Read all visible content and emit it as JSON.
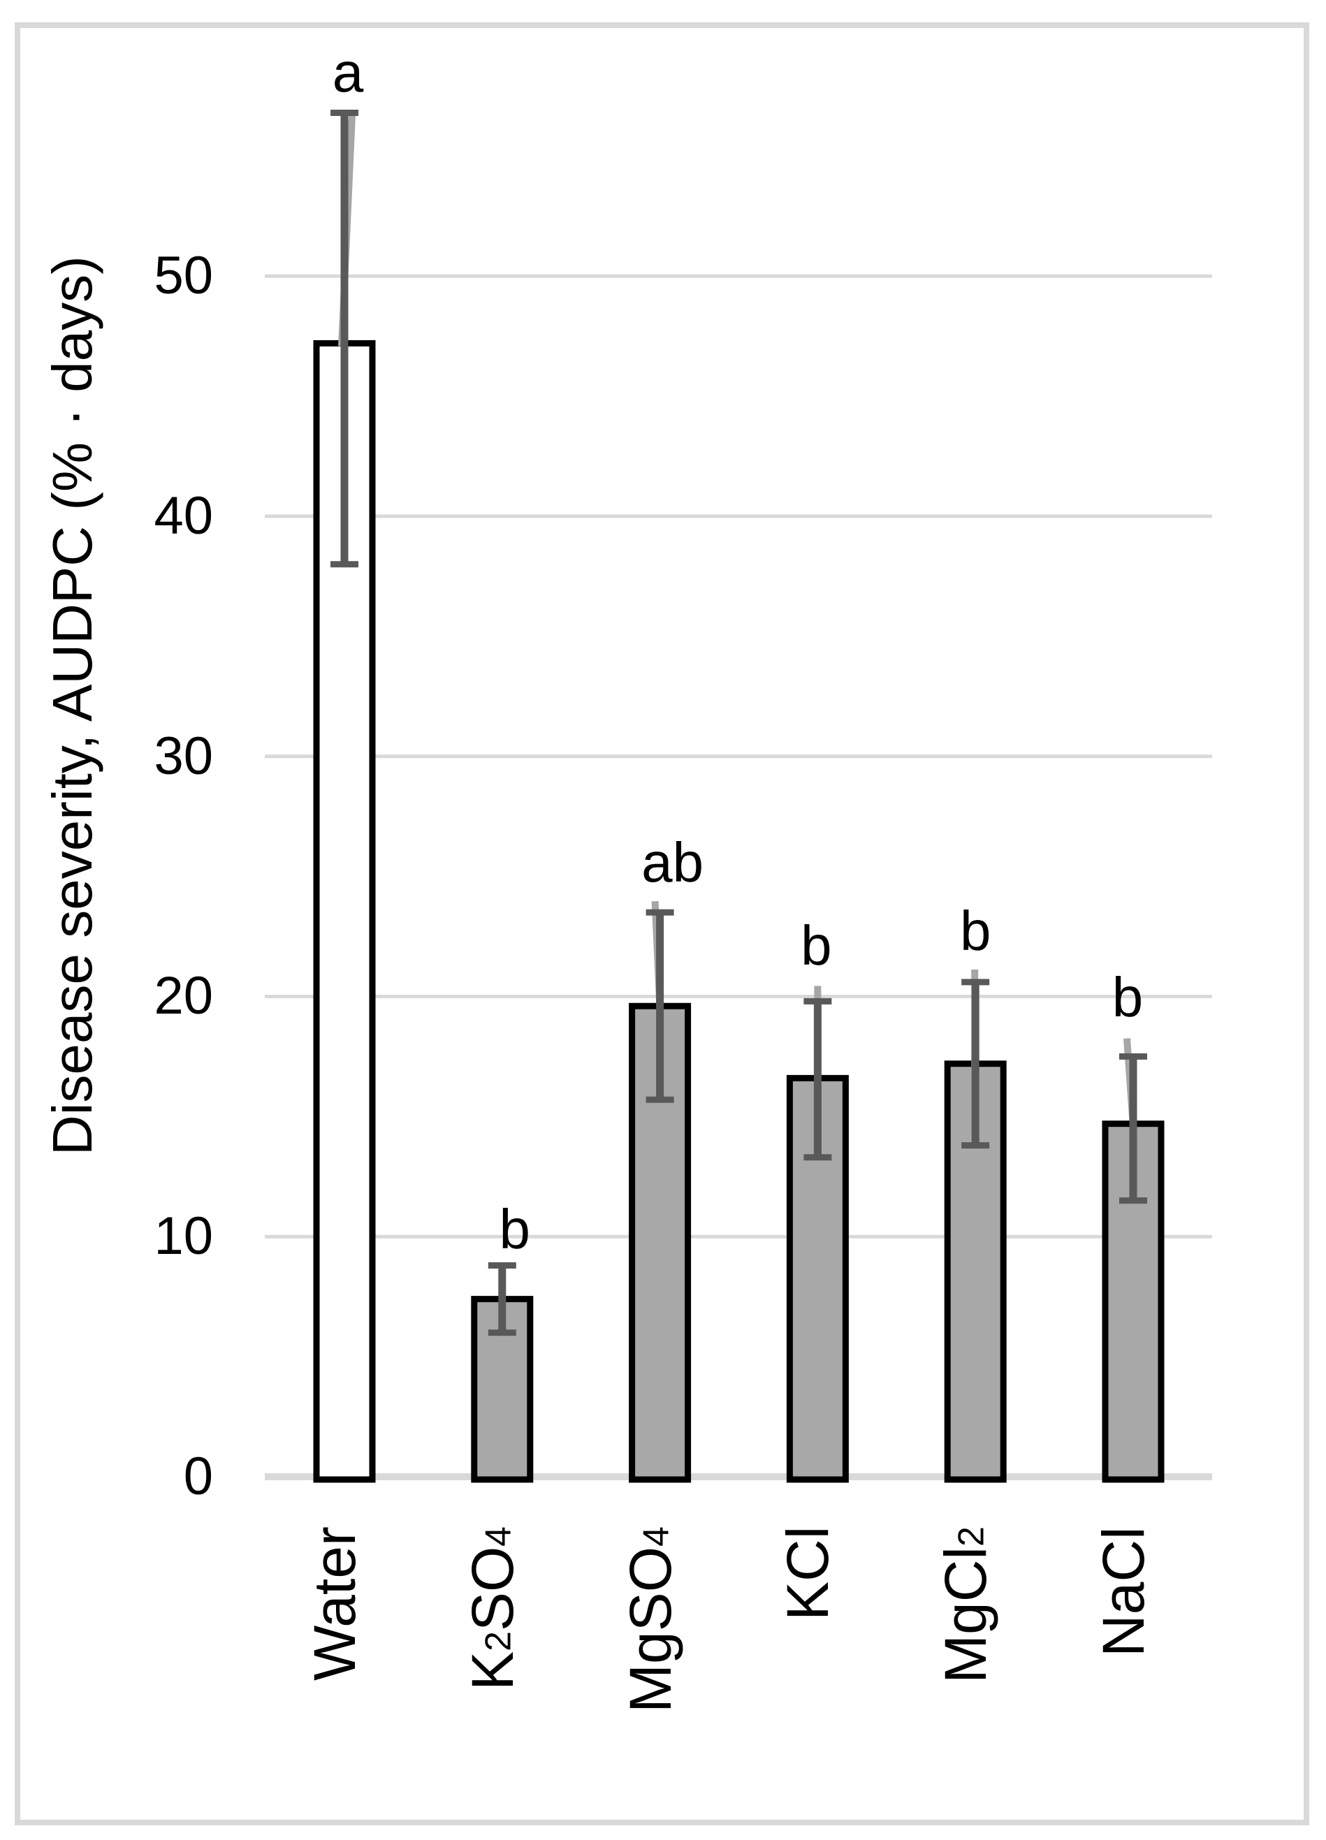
{
  "chart_data": {
    "type": "bar",
    "title": "",
    "xlabel": "",
    "ylabel": "Disease severity, AUDPC (% · days)",
    "ylim": [
      0,
      57
    ],
    "yticks": [
      0,
      10,
      20,
      30,
      40,
      50
    ],
    "grid": "horizontal",
    "legend": "none",
    "categories": [
      "Water",
      "K2SO4",
      "MgSO4",
      "KCl",
      "MgCl2",
      "NaCl"
    ],
    "category_parts": [
      [
        [
          "Water",
          0
        ]
      ],
      [
        [
          "K",
          0
        ],
        [
          "2",
          1
        ],
        [
          "SO",
          0
        ],
        [
          "4",
          1
        ]
      ],
      [
        [
          "MgSO",
          0
        ],
        [
          "4",
          1
        ]
      ],
      [
        [
          "KCl",
          0
        ]
      ],
      [
        [
          "MgCl",
          0
        ],
        [
          "2",
          1
        ]
      ],
      [
        [
          "NaCl",
          0
        ]
      ]
    ],
    "series": [
      {
        "name": "Disease severity AUDPC",
        "values": [
          47.2,
          7.4,
          19.6,
          16.6,
          17.2,
          14.7
        ],
        "error_upper_values": [
          56.8,
          8.8,
          23.5,
          19.8,
          20.6,
          17.5
        ],
        "error_lower_values": [
          38.0,
          6.0,
          15.7,
          13.3,
          13.8,
          11.5
        ],
        "bar_fills": [
          "#ffffff",
          "#a8a8a8",
          "#a8a8a8",
          "#a8a8a8",
          "#a8a8a8",
          "#a8a8a8"
        ],
        "bar_border_color": "#000000"
      }
    ],
    "significance_letters": [
      "a",
      "b",
      "ab",
      "b",
      "b",
      "b"
    ],
    "colors": {
      "error_bar_dark": "#595959",
      "error_bar_light": "#a6a6a6",
      "gridline": "#d9d9d9",
      "frame": "#d9d9d9",
      "text": "#000000"
    }
  }
}
